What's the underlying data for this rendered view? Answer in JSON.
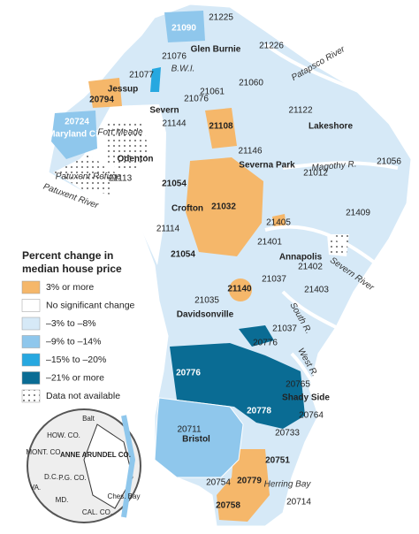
{
  "legend": {
    "title_lines": [
      "Percent change in",
      "median house price"
    ],
    "items": [
      {
        "label": "3% or more",
        "color": "#f5b76a"
      },
      {
        "label": "No significant change",
        "color": "#ffffff"
      },
      {
        "label": "–3% to –8%",
        "color": "#d6e9f7"
      },
      {
        "label": "–9% to –14%",
        "color": "#8fc7ec"
      },
      {
        "label": "–15% to –20%",
        "color": "#27a8e0"
      },
      {
        "label": "–21% or more",
        "color": "#0a6c94"
      },
      {
        "label": "Data not available",
        "color": "#ffffff"
      }
    ]
  },
  "zip_codes": [
    "21225",
    "21090",
    "21226",
    "21076",
    "21077",
    "21060",
    "21061",
    "21076",
    "20794",
    "21122",
    "20724",
    "21144",
    "21108",
    "21146",
    "21056",
    "21113",
    "21054",
    "21012",
    "21032",
    "21405",
    "21409",
    "21114",
    "21401",
    "21054",
    "21402",
    "21037",
    "21140",
    "21403",
    "21035",
    "21037",
    "20776",
    "20776",
    "20765",
    "20778",
    "20764",
    "20711",
    "20733",
    "20751",
    "20754",
    "20779",
    "20758",
    "20714"
  ],
  "places": [
    "Glen Burnie",
    "B.W.I.",
    "Jessup",
    "Severn",
    "Maryland City",
    "Fort Meade",
    "Odenton",
    "Severna Park",
    "Lakeshore",
    "Crofton",
    "Annapolis",
    "Davidsonville",
    "Shady Side",
    "Bristol"
  ],
  "water": [
    "Patapsco River",
    "Magothy R.",
    "Severn River",
    "South R.",
    "West R.",
    "Herring Bay",
    "Patuxent Refuge",
    "Patuxent River"
  ],
  "inset": [
    "Balt",
    "HOW. CO.",
    "ANNE ARUNDEL CO.",
    "MONT. CO.",
    "D.C.",
    "P.G. CO.",
    "VA.",
    "MD.",
    "CAL. CO.",
    "Ches. Bay"
  ]
}
